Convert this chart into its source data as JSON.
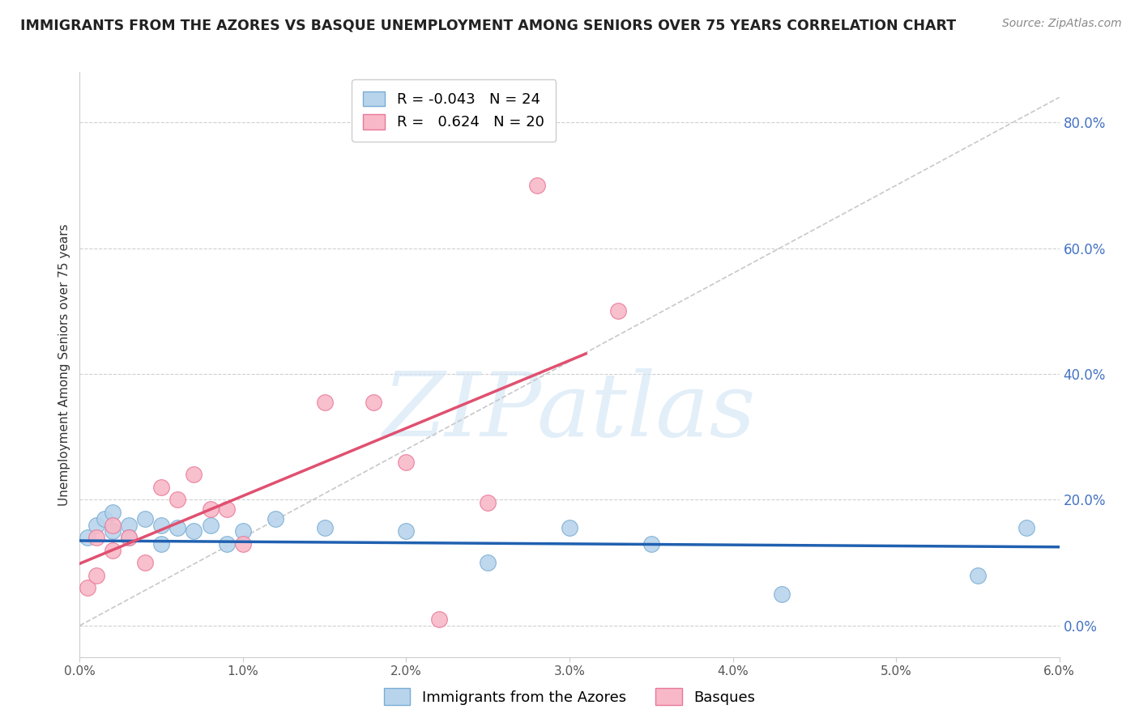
{
  "title": "IMMIGRANTS FROM THE AZORES VS BASQUE UNEMPLOYMENT AMONG SENIORS OVER 75 YEARS CORRELATION CHART",
  "source": "Source: ZipAtlas.com",
  "ylabel": "Unemployment Among Seniors over 75 years",
  "xmin": 0.0,
  "xmax": 0.06,
  "ymin": -0.05,
  "ymax": 0.88,
  "right_yticks": [
    0.0,
    0.2,
    0.4,
    0.6,
    0.8
  ],
  "right_yticklabels": [
    "0.0%",
    "20.0%",
    "40.0%",
    "60.0%",
    "80.0%"
  ],
  "xticks": [
    0.0,
    0.01,
    0.02,
    0.03,
    0.04,
    0.05,
    0.06
  ],
  "xticklabels": [
    "0.0%",
    "1.0%",
    "2.0%",
    "3.0%",
    "4.0%",
    "5.0%",
    "6.0%"
  ],
  "series1_name": "Immigrants from the Azores",
  "series1_color": "#b8d4ec",
  "series1_edge": "#7aadd4",
  "series1_R": -0.043,
  "series1_N": 24,
  "series1_line_color": "#2060b0",
  "series2_name": "Basques",
  "series2_color": "#f8b8c8",
  "series2_edge": "#e87898",
  "series2_R": 0.624,
  "series2_N": 20,
  "series2_line_color": "#e05070",
  "background_color": "#ffffff",
  "grid_color": "#d0d0d0",
  "watermark_text": "ZIPatlas",
  "marker_size": 200,
  "blue_x": [
    0.0005,
    0.001,
    0.0015,
    0.002,
    0.002,
    0.003,
    0.003,
    0.004,
    0.005,
    0.005,
    0.006,
    0.007,
    0.008,
    0.009,
    0.01,
    0.012,
    0.015,
    0.02,
    0.025,
    0.03,
    0.035,
    0.043,
    0.055,
    0.058
  ],
  "blue_y": [
    0.14,
    0.16,
    0.17,
    0.15,
    0.18,
    0.16,
    0.14,
    0.17,
    0.13,
    0.16,
    0.155,
    0.15,
    0.16,
    0.13,
    0.15,
    0.17,
    0.155,
    0.15,
    0.1,
    0.155,
    0.13,
    0.05,
    0.08,
    0.155
  ],
  "pink_x": [
    0.0005,
    0.001,
    0.001,
    0.002,
    0.002,
    0.003,
    0.004,
    0.005,
    0.006,
    0.007,
    0.008,
    0.009,
    0.01,
    0.015,
    0.018,
    0.02,
    0.022,
    0.025,
    0.028,
    0.033
  ],
  "pink_y": [
    0.06,
    0.08,
    0.14,
    0.12,
    0.16,
    0.14,
    0.1,
    0.22,
    0.2,
    0.24,
    0.185,
    0.185,
    0.13,
    0.355,
    0.355,
    0.26,
    0.01,
    0.195,
    0.7,
    0.5
  ],
  "pink_line_xstart": 0.0,
  "pink_line_xend": 0.031,
  "blue_line_xstart": 0.0,
  "blue_line_xend": 0.06,
  "diag_xstart": 0.0,
  "diag_xend": 0.06,
  "diag_ystart": 0.0,
  "diag_yend": 0.84
}
